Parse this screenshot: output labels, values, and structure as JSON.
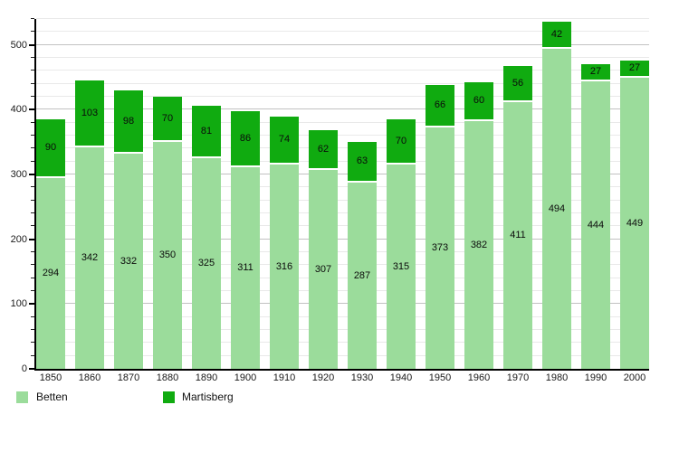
{
  "chart_data": {
    "type": "bar",
    "stacked": true,
    "title": "",
    "xlabel": "",
    "ylabel": "",
    "categories": [
      "1850",
      "1860",
      "1870",
      "1880",
      "1890",
      "1900",
      "1910",
      "1920",
      "1930",
      "1940",
      "1950",
      "1960",
      "1970",
      "1980",
      "1990",
      "2000"
    ],
    "series": [
      {
        "name": "Betten",
        "color": "#9bdc9b",
        "values": [
          294,
          342,
          332,
          350,
          325,
          311,
          316,
          307,
          287,
          315,
          373,
          382,
          411,
          494,
          444,
          449
        ]
      },
      {
        "name": "Martisberg",
        "color": "#10ab10",
        "values": [
          90,
          103,
          98,
          70,
          81,
          86,
          74,
          62,
          63,
          70,
          66,
          60,
          56,
          42,
          27,
          27
        ]
      }
    ],
    "ylim": [
      0,
      540
    ],
    "y_major_ticks": [
      "0",
      "100",
      "200",
      "300",
      "400",
      "500"
    ],
    "y_minor_step": 20,
    "grid": "horizontal-on",
    "legend_position": "bottom-left",
    "value_labels": "inside-segments"
  },
  "colors": {
    "background": "#ffffff",
    "axis": "#000000",
    "grid_minor": "#e9e9e9",
    "grid_major": "#c2c2c2",
    "label_text": "#1a1a1a"
  }
}
